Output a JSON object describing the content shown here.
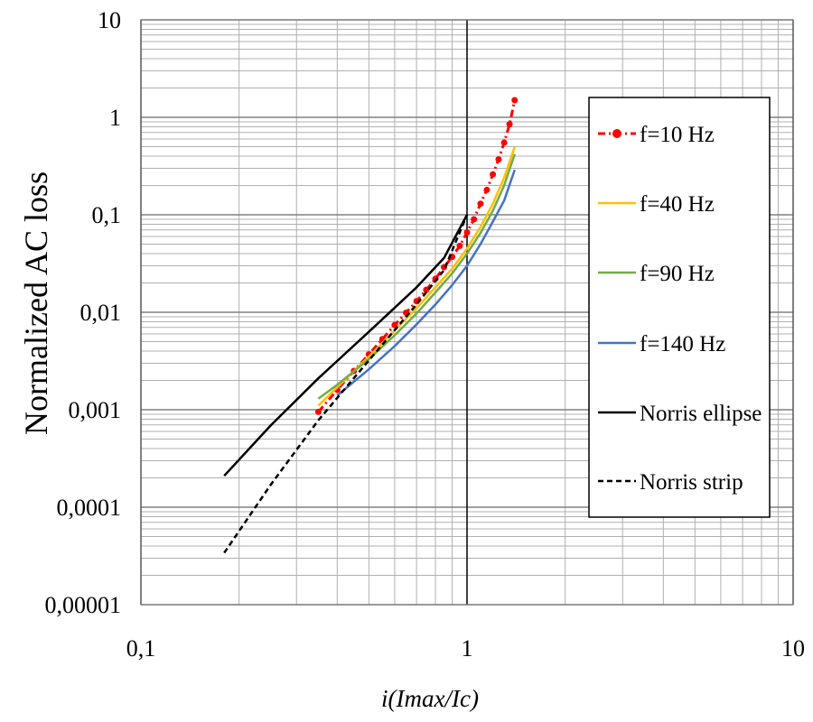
{
  "chart_data": {
    "type": "line",
    "xscale": "log",
    "yscale": "log",
    "xlim": [
      0.1,
      10
    ],
    "ylim": [
      1e-05,
      10
    ],
    "grid": true,
    "legend_position": "right",
    "xlabel": "i(Imax/Ic)",
    "ylabel": "Normalized AC loss",
    "xticks": [
      "0,1",
      "1",
      "10"
    ],
    "yticks": [
      "0,00001",
      "0,0001",
      "0,001",
      "0,01",
      "0,1",
      "1",
      "10"
    ],
    "series": [
      {
        "name": "f=10 Hz",
        "color": "#ff0000",
        "style": "dashdot-markers",
        "x": [
          0.35,
          0.4,
          0.45,
          0.5,
          0.55,
          0.6,
          0.65,
          0.7,
          0.75,
          0.8,
          0.85,
          0.9,
          0.95,
          1.0,
          1.05,
          1.1,
          1.15,
          1.2,
          1.25,
          1.3,
          1.35,
          1.4
        ],
        "y": [
          0.00095,
          0.0016,
          0.0025,
          0.0037,
          0.0053,
          0.0074,
          0.0099,
          0.013,
          0.017,
          0.022,
          0.029,
          0.037,
          0.048,
          0.066,
          0.09,
          0.13,
          0.18,
          0.26,
          0.37,
          0.55,
          0.85,
          1.5
        ]
      },
      {
        "name": "f=40 Hz",
        "color": "#ffc000",
        "style": "solid",
        "x": [
          0.35,
          0.4,
          0.5,
          0.6,
          0.7,
          0.8,
          0.9,
          1.0,
          1.1,
          1.2,
          1.3,
          1.4
        ],
        "y": [
          0.0011,
          0.0017,
          0.0035,
          0.0065,
          0.011,
          0.018,
          0.028,
          0.045,
          0.075,
          0.13,
          0.24,
          0.5
        ]
      },
      {
        "name": "f=90 Hz",
        "color": "#70ad47",
        "style": "solid",
        "x": [
          0.35,
          0.4,
          0.5,
          0.6,
          0.7,
          0.8,
          0.9,
          1.0,
          1.1,
          1.2,
          1.3,
          1.4
        ],
        "y": [
          0.0013,
          0.0018,
          0.0033,
          0.0058,
          0.0097,
          0.016,
          0.025,
          0.04,
          0.065,
          0.11,
          0.2,
          0.42
        ]
      },
      {
        "name": "f=140 Hz",
        "color": "#4472c4",
        "style": "solid",
        "x": [
          0.4,
          0.5,
          0.6,
          0.7,
          0.8,
          0.9,
          1.0,
          1.1,
          1.2,
          1.3,
          1.4
        ],
        "y": [
          0.0014,
          0.0026,
          0.0045,
          0.0075,
          0.012,
          0.019,
          0.03,
          0.05,
          0.085,
          0.14,
          0.29
        ]
      },
      {
        "name": "Norris ellipse",
        "color": "#000000",
        "style": "solid",
        "x": [
          0.18,
          0.25,
          0.35,
          0.5,
          0.7,
          0.85,
          1.0
        ],
        "y": [
          0.00021,
          0.00069,
          0.0021,
          0.0063,
          0.018,
          0.036,
          0.1
        ]
      },
      {
        "name": "Norris strip",
        "color": "#000000",
        "style": "dashed",
        "x": [
          0.18,
          0.25,
          0.35,
          0.5,
          0.7,
          0.85,
          1.0
        ],
        "y": [
          3.4e-05,
          0.00017,
          0.00078,
          0.0032,
          0.012,
          0.027,
          0.1
        ]
      }
    ]
  }
}
